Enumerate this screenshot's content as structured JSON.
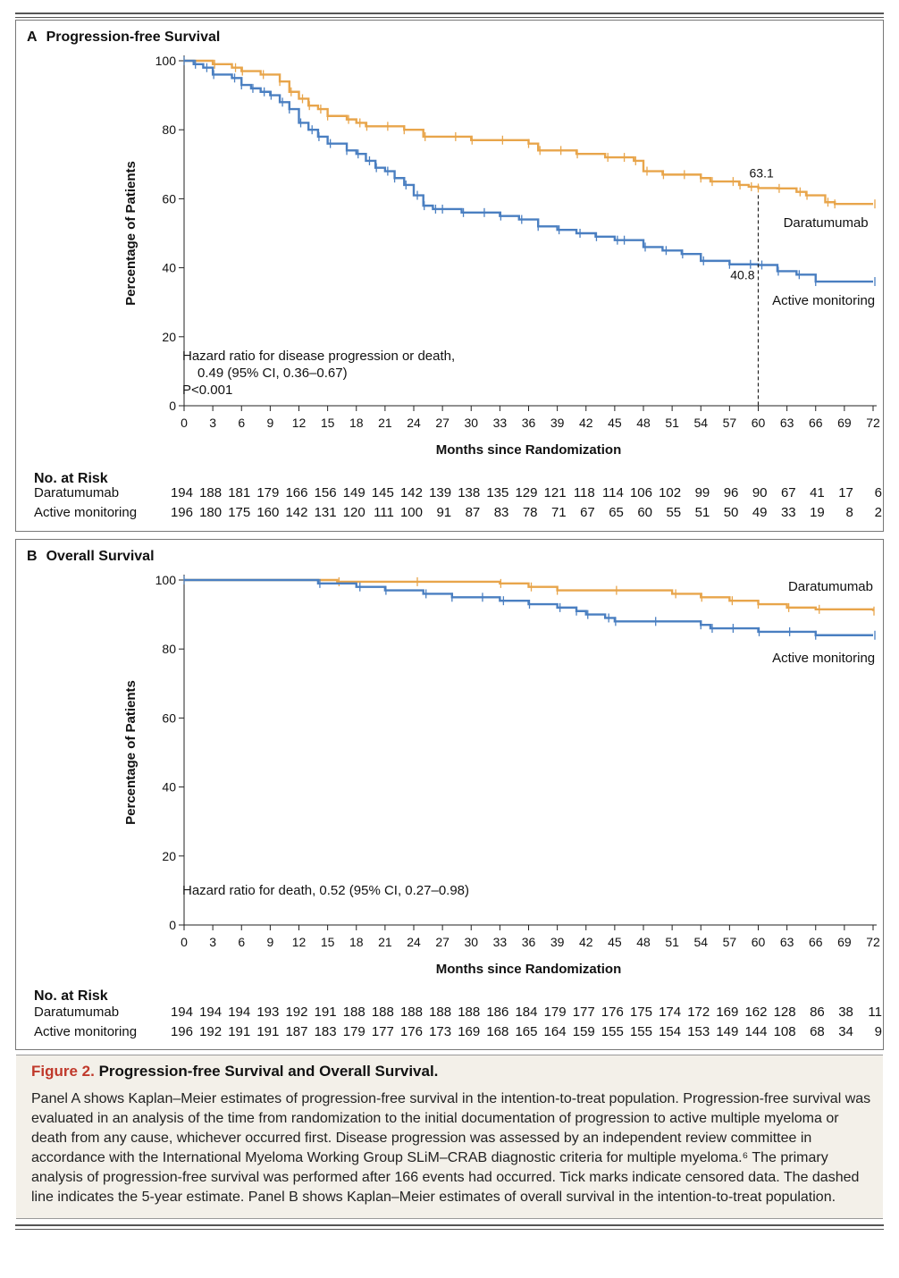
{
  "panelA": {
    "letter": "A",
    "title": "Progression-free Survival",
    "ylabel": "Percentage of Patients",
    "xlabel": "Months since Randomization",
    "annotation_lines": [
      "Hazard ratio for disease progression or death,",
      "0.49 (95% CI, 0.36–0.67)",
      "P<0.001"
    ],
    "value_dara_60": "63.1",
    "value_active_60": "40.8",
    "label_dara": "Daratumumab",
    "label_active": "Active monitoring"
  },
  "panelB": {
    "letter": "B",
    "title": "Overall Survival",
    "ylabel": "Percentage of Patients",
    "xlabel": "Months since Randomization",
    "annotation_lines": [
      "Hazard ratio for death, 0.52 (95% CI, 0.27–0.98)"
    ],
    "label_dara": "Daratumumab",
    "label_active": "Active monitoring"
  },
  "riskA": {
    "title": "No. at Risk",
    "rows": [
      {
        "label": "Daratumumab",
        "values": [
          "194",
          "188",
          "181",
          "179",
          "166",
          "156",
          "149",
          "145",
          "142",
          "139",
          "138",
          "135",
          "129",
          "121",
          "118",
          "114",
          "106",
          "102",
          "99",
          "96",
          "90",
          "67",
          "41",
          "17",
          "6"
        ]
      },
      {
        "label": "Active monitoring",
        "values": [
          "196",
          "180",
          "175",
          "160",
          "142",
          "131",
          "120",
          "111",
          "100",
          "91",
          "87",
          "83",
          "78",
          "71",
          "67",
          "65",
          "60",
          "55",
          "51",
          "50",
          "49",
          "33",
          "19",
          "8",
          "2"
        ]
      }
    ]
  },
  "riskB": {
    "title": "No. at Risk",
    "rows": [
      {
        "label": "Daratumumab",
        "values": [
          "194",
          "194",
          "194",
          "193",
          "192",
          "191",
          "188",
          "188",
          "188",
          "188",
          "188",
          "186",
          "184",
          "179",
          "177",
          "176",
          "175",
          "174",
          "172",
          "169",
          "162",
          "128",
          "86",
          "38",
          "11"
        ]
      },
      {
        "label": "Active monitoring",
        "values": [
          "196",
          "192",
          "191",
          "191",
          "187",
          "183",
          "179",
          "177",
          "176",
          "173",
          "169",
          "168",
          "165",
          "164",
          "159",
          "155",
          "155",
          "154",
          "153",
          "149",
          "144",
          "108",
          "68",
          "34",
          "9"
        ]
      }
    ]
  },
  "caption": {
    "figure_label": "Figure 2.",
    "title": " Progression-free Survival and Overall Survival.",
    "body": "Panel A shows Kaplan–Meier estimates of progression-free survival in the intention-to-treat population. Progression-free survival was evaluated in an analysis of the time from randomization to the initial documentation of progression to active multiple myeloma or death from any cause, whichever occurred first. Disease progression was assessed by an independent review committee in accordance with the International Myeloma Working Group SLiM–CRAB diagnostic criteria for multiple myeloma.⁶ The primary analysis of progression-free survival was performed after 166 events had occurred. Tick marks indicate censored data. The dashed line indicates the 5-year estimate. Panel B shows Kaplan–Meier estimates of overall survival in the intention-to-treat population."
  },
  "colors": {
    "daratumumab": "#e8a54b",
    "active_monitoring": "#4a7fc1"
  },
  "chart_data": [
    {
      "type": "line",
      "title": "Progression-free Survival",
      "xlabel": "Months since Randomization",
      "ylabel": "Percentage of Patients",
      "xlim": [
        0,
        72
      ],
      "ylim": [
        0,
        100
      ],
      "xticks": [
        0,
        3,
        6,
        9,
        12,
        15,
        18,
        21,
        24,
        27,
        30,
        33,
        36,
        39,
        42,
        45,
        48,
        51,
        54,
        57,
        60,
        63,
        66,
        69,
        72
      ],
      "yticks": [
        0,
        20,
        40,
        60,
        80,
        100
      ],
      "step": true,
      "series": [
        {
          "name": "Daratumumab",
          "color": "#e8a54b",
          "x": [
            0,
            3,
            5,
            6,
            8,
            10,
            11,
            12,
            13,
            14,
            15,
            17,
            18,
            19,
            21,
            23,
            25,
            28,
            30,
            33,
            36,
            37,
            39,
            41,
            44,
            46,
            47,
            48,
            50,
            52,
            54,
            55,
            57,
            58,
            59,
            60,
            62,
            64,
            65,
            67,
            68,
            72
          ],
          "y": [
            100,
            99,
            98,
            97,
            96,
            94,
            91,
            89,
            87,
            86,
            84,
            83,
            82,
            81,
            81,
            80,
            78,
            78,
            77,
            77,
            76,
            74,
            74,
            73,
            72,
            72,
            71,
            68,
            67,
            67,
            66,
            65,
            65,
            64,
            63.5,
            63.1,
            63,
            62,
            61,
            59,
            58.5,
            58.5
          ]
        },
        {
          "name": "Active monitoring",
          "color": "#4a7fc1",
          "x": [
            0,
            1,
            2,
            3,
            5,
            6,
            7,
            8,
            9,
            10,
            11,
            12,
            13,
            14,
            15,
            17,
            18,
            19,
            20,
            21,
            22,
            23,
            24,
            25,
            26,
            27,
            29,
            31,
            33,
            35,
            37,
            39,
            41,
            43,
            45,
            46,
            48,
            50,
            52,
            54,
            57,
            59,
            60,
            62,
            64,
            66,
            72
          ],
          "y": [
            100,
            99,
            98,
            96,
            95,
            93,
            92,
            91,
            90,
            88,
            86,
            82,
            80,
            78,
            76,
            74,
            73,
            71,
            69,
            68,
            66,
            64,
            61,
            58,
            57,
            57,
            56,
            56,
            55,
            54,
            52,
            51,
            50,
            49,
            48,
            48,
            46,
            45,
            44,
            42,
            41,
            41,
            40.8,
            39,
            38,
            36,
            36
          ]
        }
      ],
      "annotations": [
        "Hazard ratio for disease progression or death,",
        "0.49 (95% CI, 0.36–0.67)",
        "P<0.001",
        "63.1",
        "40.8"
      ],
      "reference_line_x": 60
    },
    {
      "type": "line",
      "title": "Overall Survival",
      "xlabel": "Months since Randomization",
      "ylabel": "Percentage of Patients",
      "xlim": [
        0,
        72
      ],
      "ylim": [
        0,
        100
      ],
      "xticks": [
        0,
        3,
        6,
        9,
        12,
        15,
        18,
        21,
        24,
        27,
        30,
        33,
        36,
        39,
        42,
        45,
        48,
        51,
        54,
        57,
        60,
        63,
        66,
        69,
        72
      ],
      "yticks": [
        0,
        20,
        40,
        60,
        80,
        100
      ],
      "step": true,
      "series": [
        {
          "name": "Daratumumab",
          "color": "#e8a54b",
          "x": [
            0,
            16,
            24,
            33,
            36,
            39,
            45,
            51,
            54,
            57,
            60,
            63,
            66,
            72
          ],
          "y": [
            100,
            99.5,
            99.5,
            99,
            98,
            97,
            97,
            96,
            95,
            94,
            93,
            92,
            91.5,
            91
          ]
        },
        {
          "name": "Active monitoring",
          "color": "#4a7fc1",
          "x": [
            0,
            14,
            18,
            21,
            25,
            28,
            31,
            33,
            36,
            39,
            41,
            42,
            44,
            45,
            49,
            54,
            55,
            57,
            60,
            63,
            66,
            72
          ],
          "y": [
            100,
            99,
            98,
            97,
            96,
            95,
            95,
            94,
            93,
            92,
            91,
            90,
            89,
            88,
            88,
            87,
            86,
            86,
            85,
            85,
            84,
            84
          ]
        }
      ],
      "annotations": [
        "Hazard ratio for death, 0.52 (95% CI, 0.27–0.98)"
      ]
    }
  ]
}
